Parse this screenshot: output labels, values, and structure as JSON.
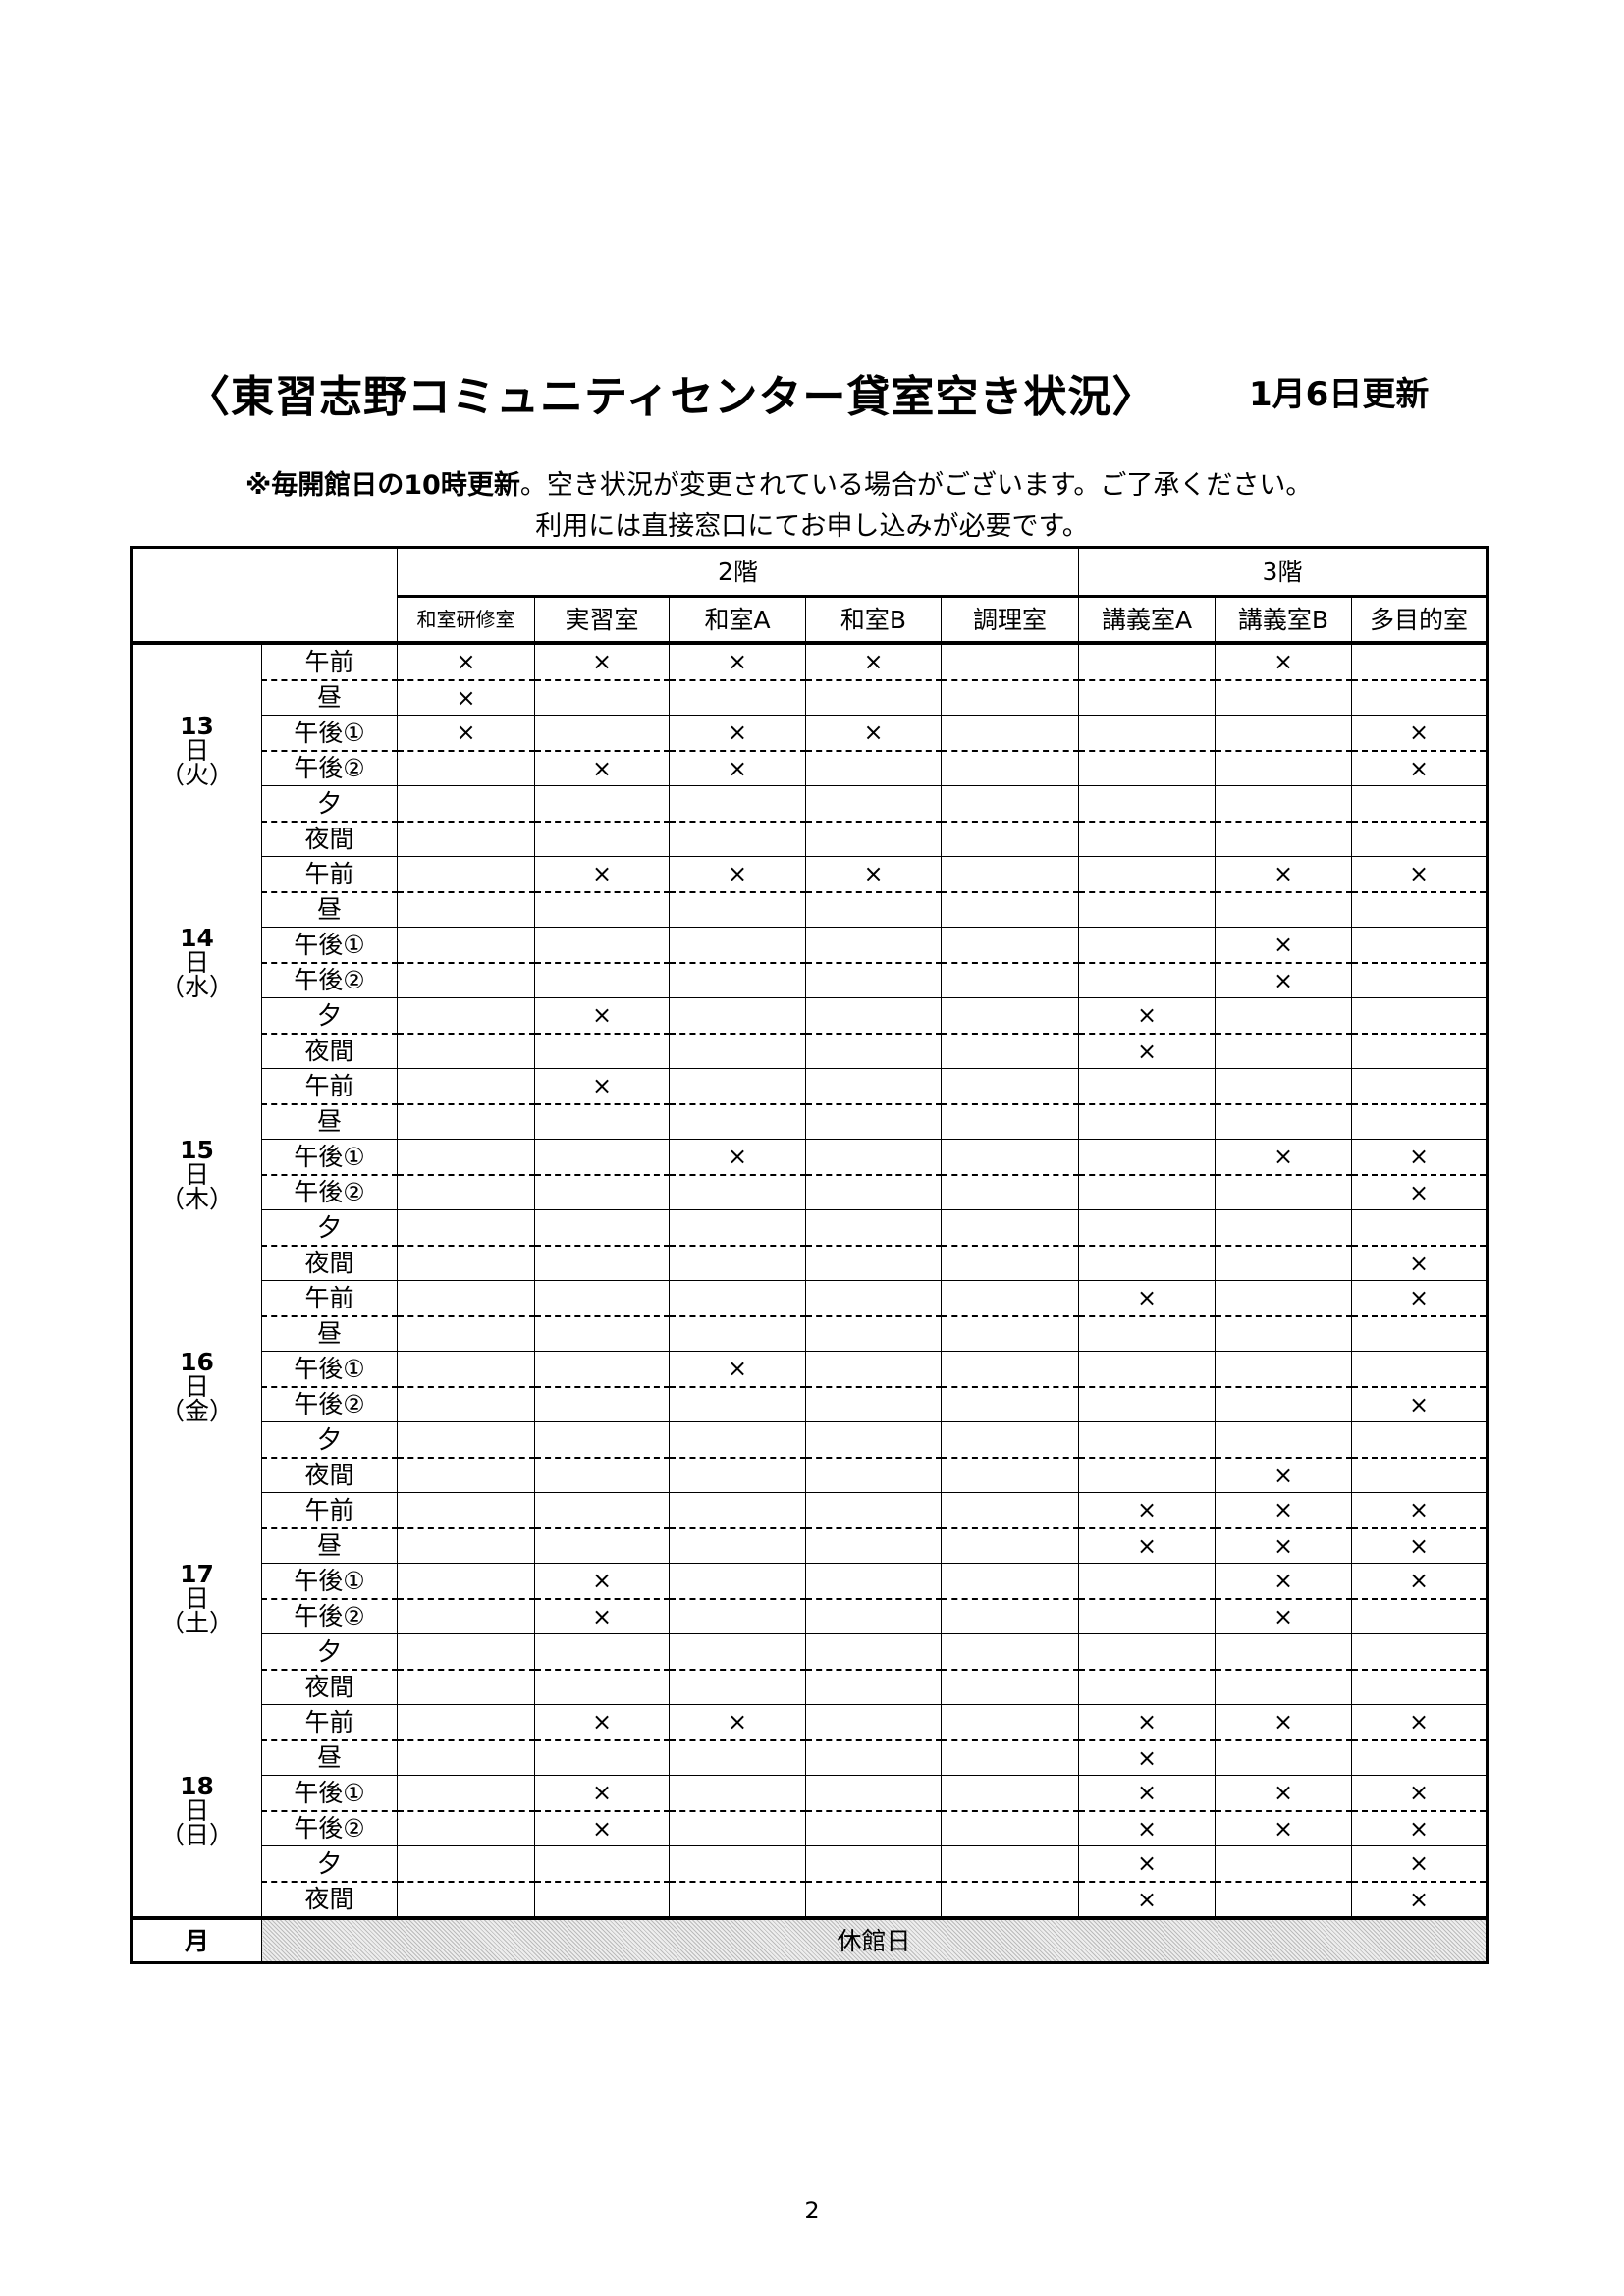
{
  "header": {
    "title": "〈東習志野コミュニティセンター貸室空き状況〉",
    "updated": "1月6日更新",
    "note_bold": "※毎開館日の10時更新",
    "note_rest": "。空き状況が変更されている場合がございます。ご了承ください。",
    "note2": "利用には直接窓口にてお申し込みが必要です。"
  },
  "floors": [
    {
      "label": "2階",
      "span": 5
    },
    {
      "label": "3階",
      "span": 3
    }
  ],
  "rooms": [
    "和室研修室",
    "実習室",
    "和室A",
    "和室B",
    "調理室",
    "講義室A",
    "講義室B",
    "多目的室"
  ],
  "slots": [
    "午前",
    "昼",
    "午後①",
    "午後②",
    "夕",
    "夜間"
  ],
  "mark_symbol": "×",
  "days": [
    {
      "day": "13",
      "unit": "日",
      "weekday": "（火）",
      "rows": [
        "xxxx__x_",
        "x_______",
        "x_xx___x",
        "_xx____x",
        "________",
        "________"
      ]
    },
    {
      "day": "14",
      "unit": "日",
      "weekday": "（水）",
      "rows": [
        "_xxx__xx",
        "________",
        "______x_",
        "______x_",
        "_x___x__",
        "_____x__"
      ]
    },
    {
      "day": "15",
      "unit": "日",
      "weekday": "（木）",
      "rows": [
        "_x______",
        "________",
        "__x___xx",
        "_______x",
        "________",
        "_______x"
      ]
    },
    {
      "day": "16",
      "unit": "日",
      "weekday": "（金）",
      "rows": [
        "_____x_x",
        "________",
        "__x_____",
        "_______x",
        "________",
        "______x_"
      ]
    },
    {
      "day": "17",
      "unit": "日",
      "weekday": "（土）",
      "rows": [
        "_____xxx",
        "_____xxx",
        "_x____xx",
        "_x____x_",
        "________",
        "________"
      ]
    },
    {
      "day": "18",
      "unit": "日",
      "weekday": "（日）",
      "rows": [
        "_xx__xxx",
        "_____x__",
        "_x___xxx",
        "_x___xxx",
        "_____x_x",
        "_____x_x"
      ]
    }
  ],
  "closed": {
    "day": "月",
    "label": "休館日"
  },
  "page_number": "2"
}
